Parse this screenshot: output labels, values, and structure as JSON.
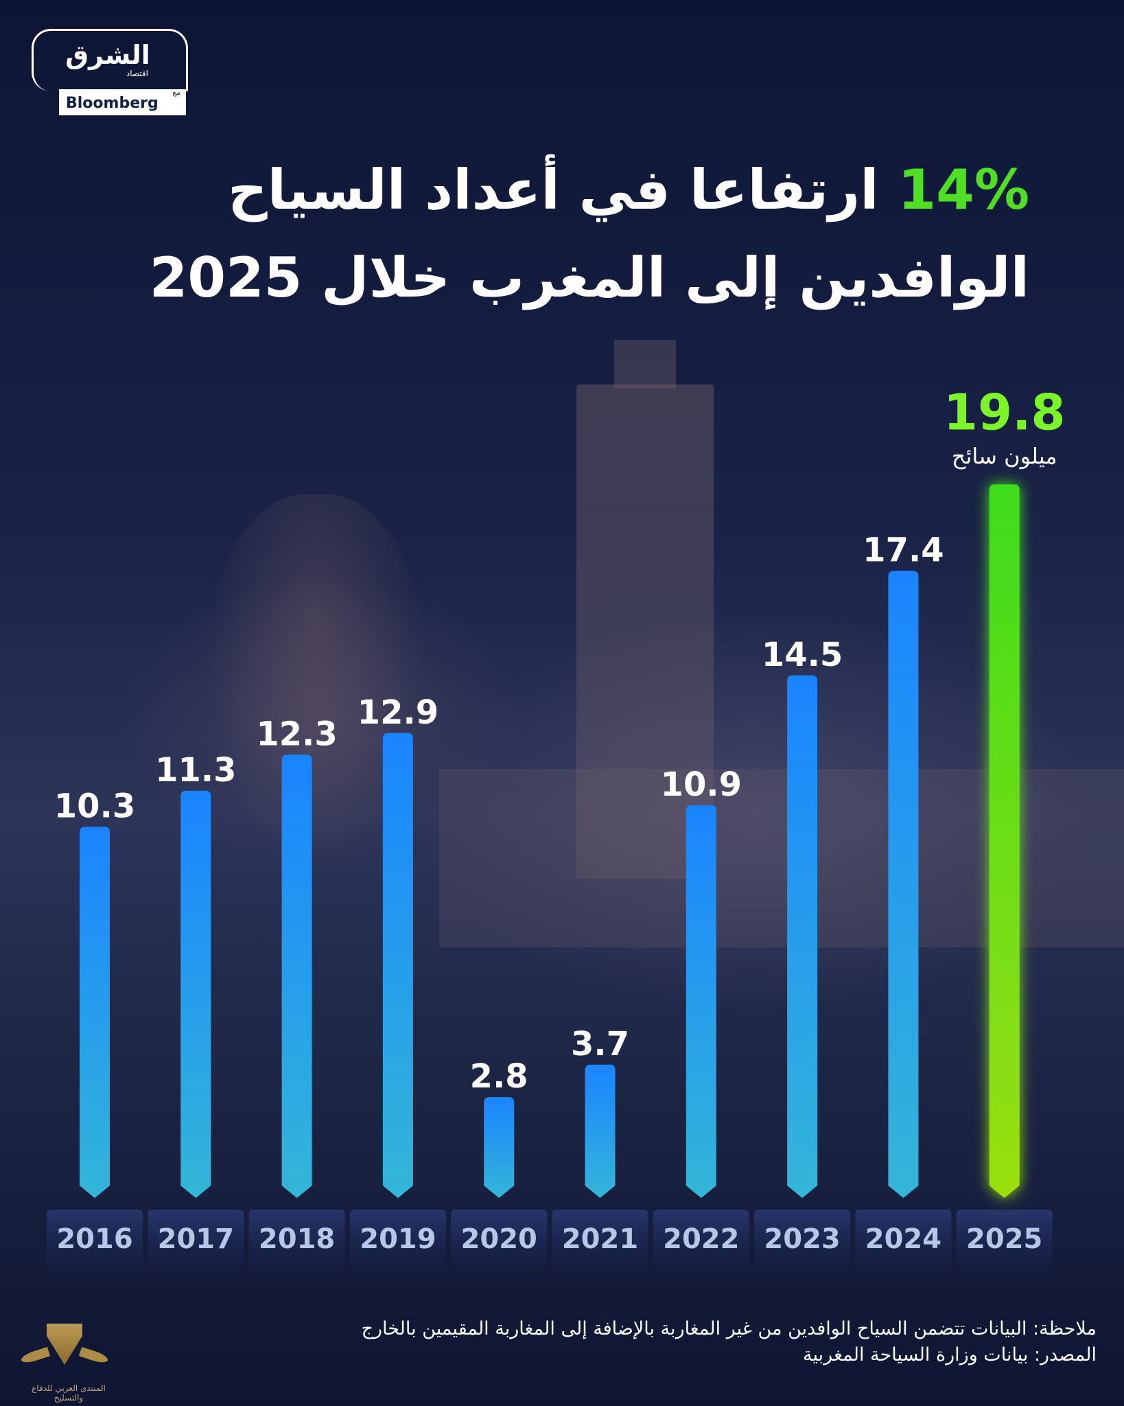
{
  "logo": {
    "brand_ar": "الشرق",
    "sub_ar": "اقتصاد",
    "with_ar": "مع",
    "partner": "Bloomberg"
  },
  "title": {
    "line1_highlight": "14%",
    "line1_rest": "ارتفاعا في أعداد السياح",
    "line2": "الوافدين إلى المغرب خلال 2025"
  },
  "chart_data": {
    "type": "bar",
    "title": "14% ارتفاعا في أعداد السياح الوافدين إلى المغرب خلال 2025",
    "categories": [
      "2016",
      "2017",
      "2018",
      "2019",
      "2020",
      "2021",
      "2022",
      "2023",
      "2024",
      "2025"
    ],
    "values": [
      10.3,
      11.3,
      12.3,
      12.9,
      2.8,
      3.7,
      10.9,
      14.5,
      17.4,
      19.8
    ],
    "value_labels": [
      "10.3",
      "11.3",
      "12.3",
      "12.9",
      "2.8",
      "3.7",
      "10.9",
      "14.5",
      "17.4",
      "19.8"
    ],
    "highlight_index": 9,
    "highlight_unit": "ميلون سائح",
    "ylabel": "ميلون سائح",
    "ylim": [
      0,
      20
    ],
    "grid": false,
    "colors": {
      "bar_top": "#1a84ff",
      "bar_bottom": "#33b6d8",
      "highlight_top": "#3ddc1c",
      "highlight_bottom": "#9adf10",
      "highlight_label": "#7cf528",
      "label": "#ffffff",
      "year": "#b9c7e6"
    }
  },
  "footer": {
    "note": "ملاحظة: البيانات تتضمن السياح الوافدين من غير المغاربة بالإضافة إلى المغاربة المقيمين بالخارج",
    "source": "المصدر: بيانات وزارة السياحة المغربية"
  },
  "watermark": {
    "text": "المنتدى العربي للدفاع والتسليح"
  }
}
